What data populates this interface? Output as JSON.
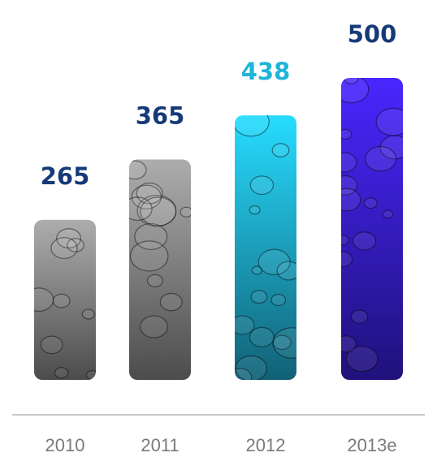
{
  "chart_data": {
    "type": "bar",
    "categories": [
      "2010",
      "2011",
      "2012",
      "2013e"
    ],
    "values": [
      265,
      365,
      438,
      500
    ],
    "colors": [
      "#8a8a8a",
      "#8a8a8a",
      "#1fb0d6",
      "#3a1ee0"
    ],
    "label_colors": [
      "#163a78",
      "#163a78",
      "#1fb4d8",
      "#163a78"
    ],
    "ylim": [
      0,
      500
    ]
  }
}
